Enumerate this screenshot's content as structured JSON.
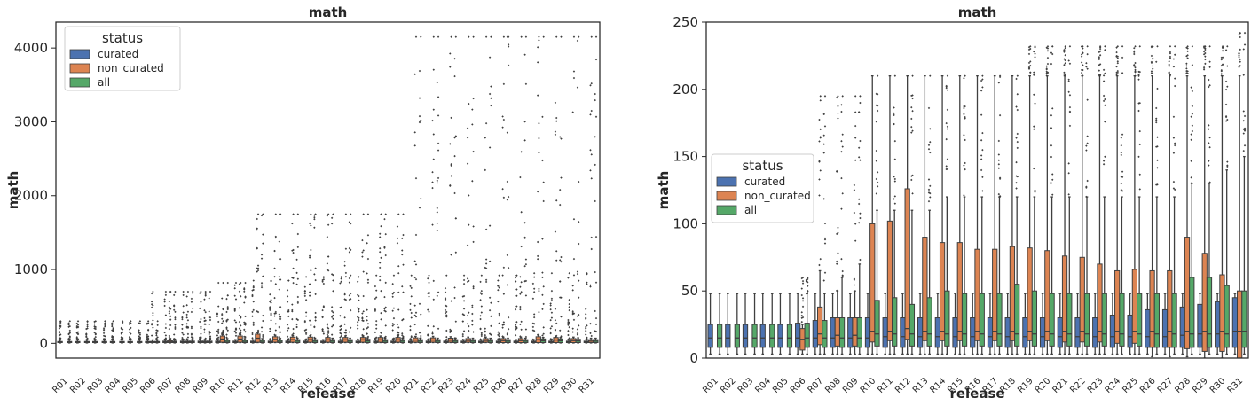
{
  "categories": [
    "R01",
    "R02",
    "R03",
    "R04",
    "R05",
    "R06",
    "R07",
    "R08",
    "R09",
    "R10",
    "R11",
    "R12",
    "R13",
    "R14",
    "R15",
    "R16",
    "R17",
    "R18",
    "R19",
    "R20",
    "R21",
    "R22",
    "R23",
    "R24",
    "R25",
    "R26",
    "R27",
    "R28",
    "R29",
    "R30",
    "R31"
  ],
  "legend": {
    "title": "status",
    "entries": [
      {
        "label": "curated",
        "color": "#4c72b0"
      },
      {
        "label": "non_curated",
        "color": "#dd8452"
      },
      {
        "label": "all",
        "color": "#55a868"
      }
    ]
  },
  "chart_data": [
    {
      "type": "box",
      "title": "math",
      "xlabel": "release",
      "ylabel": "math",
      "ylim": [
        -200,
        4350
      ],
      "yticks": [
        0,
        1000,
        2000,
        3000,
        4000
      ],
      "legend_position": "upper-left",
      "categories": [
        "R01",
        "R02",
        "R03",
        "R04",
        "R05",
        "R06",
        "R07",
        "R08",
        "R09",
        "R10",
        "R11",
        "R12",
        "R13",
        "R14",
        "R15",
        "R16",
        "R17",
        "R18",
        "R19",
        "R20",
        "R21",
        "R22",
        "R23",
        "R24",
        "R25",
        "R26",
        "R27",
        "R28",
        "R29",
        "R30",
        "R31"
      ],
      "series": [
        {
          "name": "curated",
          "q1": [
            10,
            10,
            10,
            10,
            10,
            10,
            10,
            10,
            10,
            10,
            10,
            10,
            10,
            10,
            10,
            10,
            10,
            10,
            10,
            10,
            10,
            10,
            10,
            10,
            10,
            10,
            10,
            10,
            10,
            10,
            10
          ],
          "q3": [
            25,
            25,
            25,
            25,
            25,
            25,
            30,
            30,
            30,
            30,
            30,
            30,
            30,
            30,
            30,
            30,
            30,
            30,
            30,
            30,
            30,
            30,
            30,
            30,
            30,
            30,
            30,
            30,
            30,
            30,
            30
          ],
          "outlier_max": [
            300,
            300,
            300,
            300,
            300,
            300,
            700,
            700,
            700,
            820,
            820,
            850,
            850,
            850,
            900,
            900,
            900,
            900,
            920,
            920,
            920,
            920,
            920,
            920,
            920,
            920,
            920,
            950,
            950,
            950,
            950
          ]
        },
        {
          "name": "non_curated",
          "q1": [
            0,
            0,
            0,
            0,
            0,
            10,
            10,
            10,
            10,
            15,
            15,
            15,
            15,
            15,
            15,
            15,
            15,
            15,
            15,
            15,
            15,
            15,
            15,
            15,
            15,
            10,
            10,
            10,
            10,
            10,
            10
          ],
          "q3": [
            0,
            0,
            0,
            0,
            0,
            25,
            40,
            30,
            30,
            100,
            100,
            125,
            90,
            85,
            85,
            80,
            80,
            80,
            80,
            80,
            75,
            75,
            70,
            65,
            65,
            65,
            65,
            90,
            80,
            65,
            50
          ],
          "outlier_max": [
            0,
            0,
            0,
            0,
            0,
            700,
            700,
            700,
            700,
            820,
            820,
            1750,
            1750,
            1750,
            1750,
            1750,
            1750,
            1750,
            1750,
            1750,
            4150,
            4150,
            4150,
            4150,
            4150,
            4150,
            4150,
            4150,
            4150,
            4150,
            4150
          ]
        },
        {
          "name": "all",
          "q1": [
            10,
            10,
            10,
            10,
            10,
            10,
            10,
            10,
            10,
            10,
            10,
            10,
            10,
            10,
            10,
            10,
            10,
            10,
            10,
            10,
            10,
            10,
            10,
            10,
            10,
            10,
            10,
            10,
            10,
            10,
            10
          ],
          "q3": [
            25,
            25,
            25,
            25,
            25,
            25,
            30,
            30,
            30,
            45,
            45,
            45,
            45,
            50,
            50,
            50,
            50,
            55,
            50,
            50,
            50,
            50,
            50,
            50,
            50,
            50,
            50,
            60,
            60,
            55,
            50
          ],
          "outlier_max": [
            300,
            300,
            300,
            300,
            300,
            300,
            700,
            700,
            700,
            820,
            820,
            1750,
            1750,
            1750,
            1750,
            1750,
            1750,
            1750,
            1750,
            1750,
            4150,
            4150,
            4150,
            4150,
            4150,
            4150,
            4150,
            4150,
            4150,
            4150,
            4150
          ]
        }
      ]
    },
    {
      "type": "box",
      "title": "math",
      "xlabel": "release",
      "ylabel": "math",
      "ylim": [
        0,
        250
      ],
      "yticks": [
        0,
        50,
        100,
        150,
        200,
        250
      ],
      "legend_position": "center-left",
      "categories": [
        "R01",
        "R02",
        "R03",
        "R04",
        "R05",
        "R06",
        "R07",
        "R08",
        "R09",
        "R10",
        "R11",
        "R12",
        "R13",
        "R14",
        "R15",
        "R16",
        "R17",
        "R18",
        "R19",
        "R20",
        "R21",
        "R22",
        "R23",
        "R24",
        "R25",
        "R26",
        "R27",
        "R28",
        "R29",
        "R30",
        "R31"
      ],
      "series": [
        {
          "name": "curated",
          "whislo": [
            3,
            3,
            3,
            3,
            3,
            3,
            3,
            3,
            3,
            3,
            3,
            3,
            3,
            3,
            3,
            3,
            3,
            3,
            3,
            3,
            3,
            3,
            3,
            3,
            3,
            3,
            3,
            3,
            3,
            3,
            3
          ],
          "q1": [
            8,
            8,
            8,
            8,
            8,
            8,
            8,
            8,
            8,
            8,
            8,
            8,
            8,
            8,
            8,
            8,
            8,
            8,
            8,
            8,
            8,
            8,
            8,
            8,
            8,
            8,
            8,
            8,
            8,
            8,
            8
          ],
          "median": [
            15,
            15,
            15,
            15,
            15,
            15,
            15,
            15,
            15,
            15,
            16,
            16,
            16,
            16,
            16,
            16,
            16,
            16,
            16,
            16,
            16,
            16,
            16,
            16,
            16,
            16,
            16,
            17,
            18,
            18,
            20
          ],
          "q3": [
            25,
            25,
            25,
            25,
            25,
            26,
            28,
            30,
            30,
            30,
            30,
            30,
            30,
            30,
            30,
            30,
            30,
            30,
            30,
            30,
            30,
            30,
            30,
            32,
            32,
            36,
            36,
            38,
            40,
            42,
            45
          ],
          "whishi": [
            48,
            48,
            48,
            48,
            48,
            48,
            48,
            48,
            48,
            48,
            48,
            48,
            48,
            48,
            48,
            48,
            48,
            48,
            48,
            48,
            48,
            48,
            48,
            48,
            48,
            48,
            48,
            48,
            48,
            48,
            48
          ]
        },
        {
          "name": "non_curated",
          "whislo": [
            0,
            0,
            0,
            0,
            0,
            3,
            3,
            3,
            3,
            3,
            3,
            3,
            3,
            3,
            3,
            3,
            3,
            3,
            3,
            3,
            3,
            3,
            3,
            3,
            3,
            1,
            1,
            1,
            0,
            0,
            0
          ],
          "q1": [
            0,
            0,
            0,
            0,
            0,
            6,
            10,
            9,
            9,
            12,
            13,
            14,
            13,
            13,
            13,
            13,
            13,
            13,
            13,
            13,
            12,
            12,
            12,
            11,
            11,
            8,
            8,
            7,
            5,
            5,
            0
          ],
          "median": [
            0,
            0,
            0,
            0,
            0,
            14,
            18,
            17,
            17,
            20,
            20,
            22,
            20,
            20,
            20,
            20,
            20,
            20,
            20,
            20,
            20,
            20,
            20,
            20,
            20,
            20,
            20,
            20,
            20,
            20,
            20
          ],
          "q3": [
            0,
            0,
            0,
            0,
            0,
            22,
            38,
            30,
            30,
            100,
            102,
            126,
            90,
            86,
            86,
            81,
            81,
            83,
            82,
            80,
            76,
            75,
            70,
            65,
            66,
            65,
            65,
            90,
            78,
            62,
            50
          ],
          "whishi": [
            0,
            0,
            0,
            0,
            0,
            25,
            65,
            50,
            50,
            210,
            210,
            210,
            210,
            210,
            210,
            210,
            210,
            210,
            210,
            210,
            210,
            210,
            210,
            210,
            210,
            210,
            210,
            210,
            210,
            210,
            210
          ],
          "outlier_max": [
            0,
            0,
            0,
            0,
            0,
            60,
            195,
            195,
            195,
            210,
            210,
            210,
            210,
            210,
            210,
            210,
            210,
            210,
            232,
            232,
            232,
            232,
            232,
            232,
            232,
            232,
            232,
            232,
            232,
            232,
            242
          ]
        },
        {
          "name": "all",
          "whislo": [
            3,
            3,
            3,
            3,
            3,
            3,
            3,
            3,
            3,
            3,
            3,
            3,
            3,
            3,
            3,
            3,
            3,
            3,
            3,
            3,
            3,
            3,
            3,
            3,
            3,
            3,
            3,
            3,
            3,
            3,
            3
          ],
          "q1": [
            8,
            8,
            8,
            8,
            8,
            8,
            8,
            8,
            8,
            9,
            9,
            9,
            9,
            9,
            9,
            9,
            9,
            9,
            9,
            9,
            9,
            9,
            9,
            9,
            9,
            8,
            8,
            8,
            8,
            8,
            8
          ],
          "median": [
            15,
            15,
            15,
            15,
            15,
            15,
            15,
            15,
            15,
            18,
            18,
            18,
            18,
            18,
            18,
            18,
            18,
            18,
            18,
            18,
            18,
            18,
            18,
            18,
            18,
            18,
            18,
            18,
            18,
            18,
            20
          ],
          "q3": [
            25,
            25,
            25,
            25,
            25,
            26,
            28,
            30,
            30,
            43,
            45,
            40,
            45,
            50,
            48,
            48,
            48,
            55,
            50,
            48,
            48,
            48,
            48,
            48,
            48,
            48,
            48,
            60,
            60,
            54,
            50
          ],
          "whishi": [
            48,
            48,
            48,
            48,
            48,
            48,
            48,
            60,
            70,
            110,
            110,
            110,
            110,
            120,
            120,
            120,
            120,
            120,
            120,
            120,
            120,
            120,
            120,
            120,
            120,
            120,
            120,
            130,
            130,
            140,
            150
          ],
          "outlier_max": [
            48,
            48,
            48,
            48,
            48,
            60,
            195,
            195,
            195,
            210,
            210,
            210,
            210,
            210,
            210,
            210,
            210,
            210,
            232,
            232,
            232,
            232,
            232,
            232,
            232,
            232,
            232,
            232,
            232,
            232,
            242
          ]
        }
      ]
    }
  ]
}
